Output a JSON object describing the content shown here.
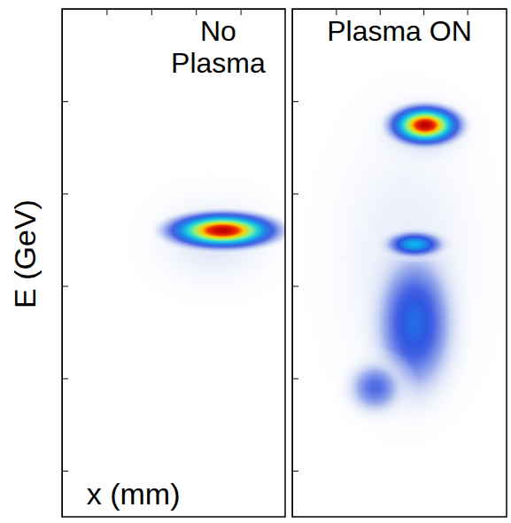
{
  "chart_data": [
    {
      "type": "heatmap",
      "title": "No Plasma",
      "xlabel": "x (mm)",
      "ylabel": "E (GeV)",
      "xlim": [
        0,
        2.5
      ],
      "xticks": [
        0.5,
        1,
        1.5,
        2
      ],
      "ylim": [
        0,
        5.5
      ],
      "yticks": [
        0.5,
        1.5,
        2.5,
        3.5,
        4.5
      ],
      "tick_labels": false,
      "clim": [
        0,
        1
      ],
      "spots": [
        {
          "x": 1.7,
          "y": 3.0,
          "width": 2.6,
          "height": 1.9,
          "peak": 0.08
        },
        {
          "x": 1.8,
          "y": 3.1,
          "width": 1.6,
          "height": 0.5,
          "peak": 1.0
        }
      ]
    },
    {
      "type": "heatmap",
      "title": "Plasma ON",
      "xlim": [
        0,
        2.45
      ],
      "xticks": [
        0.5,
        1,
        1.5,
        2
      ],
      "ylim": [
        0,
        5.5
      ],
      "yticks": [
        0.5,
        1.5,
        2.5,
        3.5,
        4.5
      ],
      "tick_labels": false,
      "clim": [
        0,
        1
      ],
      "spots": [
        {
          "x": 1.3,
          "y": 2.8,
          "width": 3.2,
          "height": 5.6,
          "peak": 0.07
        },
        {
          "x": 1.5,
          "y": 4.2,
          "width": 1.7,
          "height": 1.1,
          "peak": 0.12
        },
        {
          "x": 1.4,
          "y": 2.1,
          "width": 1.4,
          "height": 2.4,
          "peak": 0.3
        },
        {
          "x": 0.95,
          "y": 1.4,
          "width": 1.0,
          "height": 0.9,
          "peak": 0.22
        },
        {
          "x": 1.4,
          "y": 2.95,
          "width": 0.95,
          "height": 0.4,
          "peak": 0.42
        },
        {
          "x": 1.52,
          "y": 4.24,
          "width": 1.05,
          "height": 0.55,
          "peak": 1.0
        }
      ]
    }
  ]
}
